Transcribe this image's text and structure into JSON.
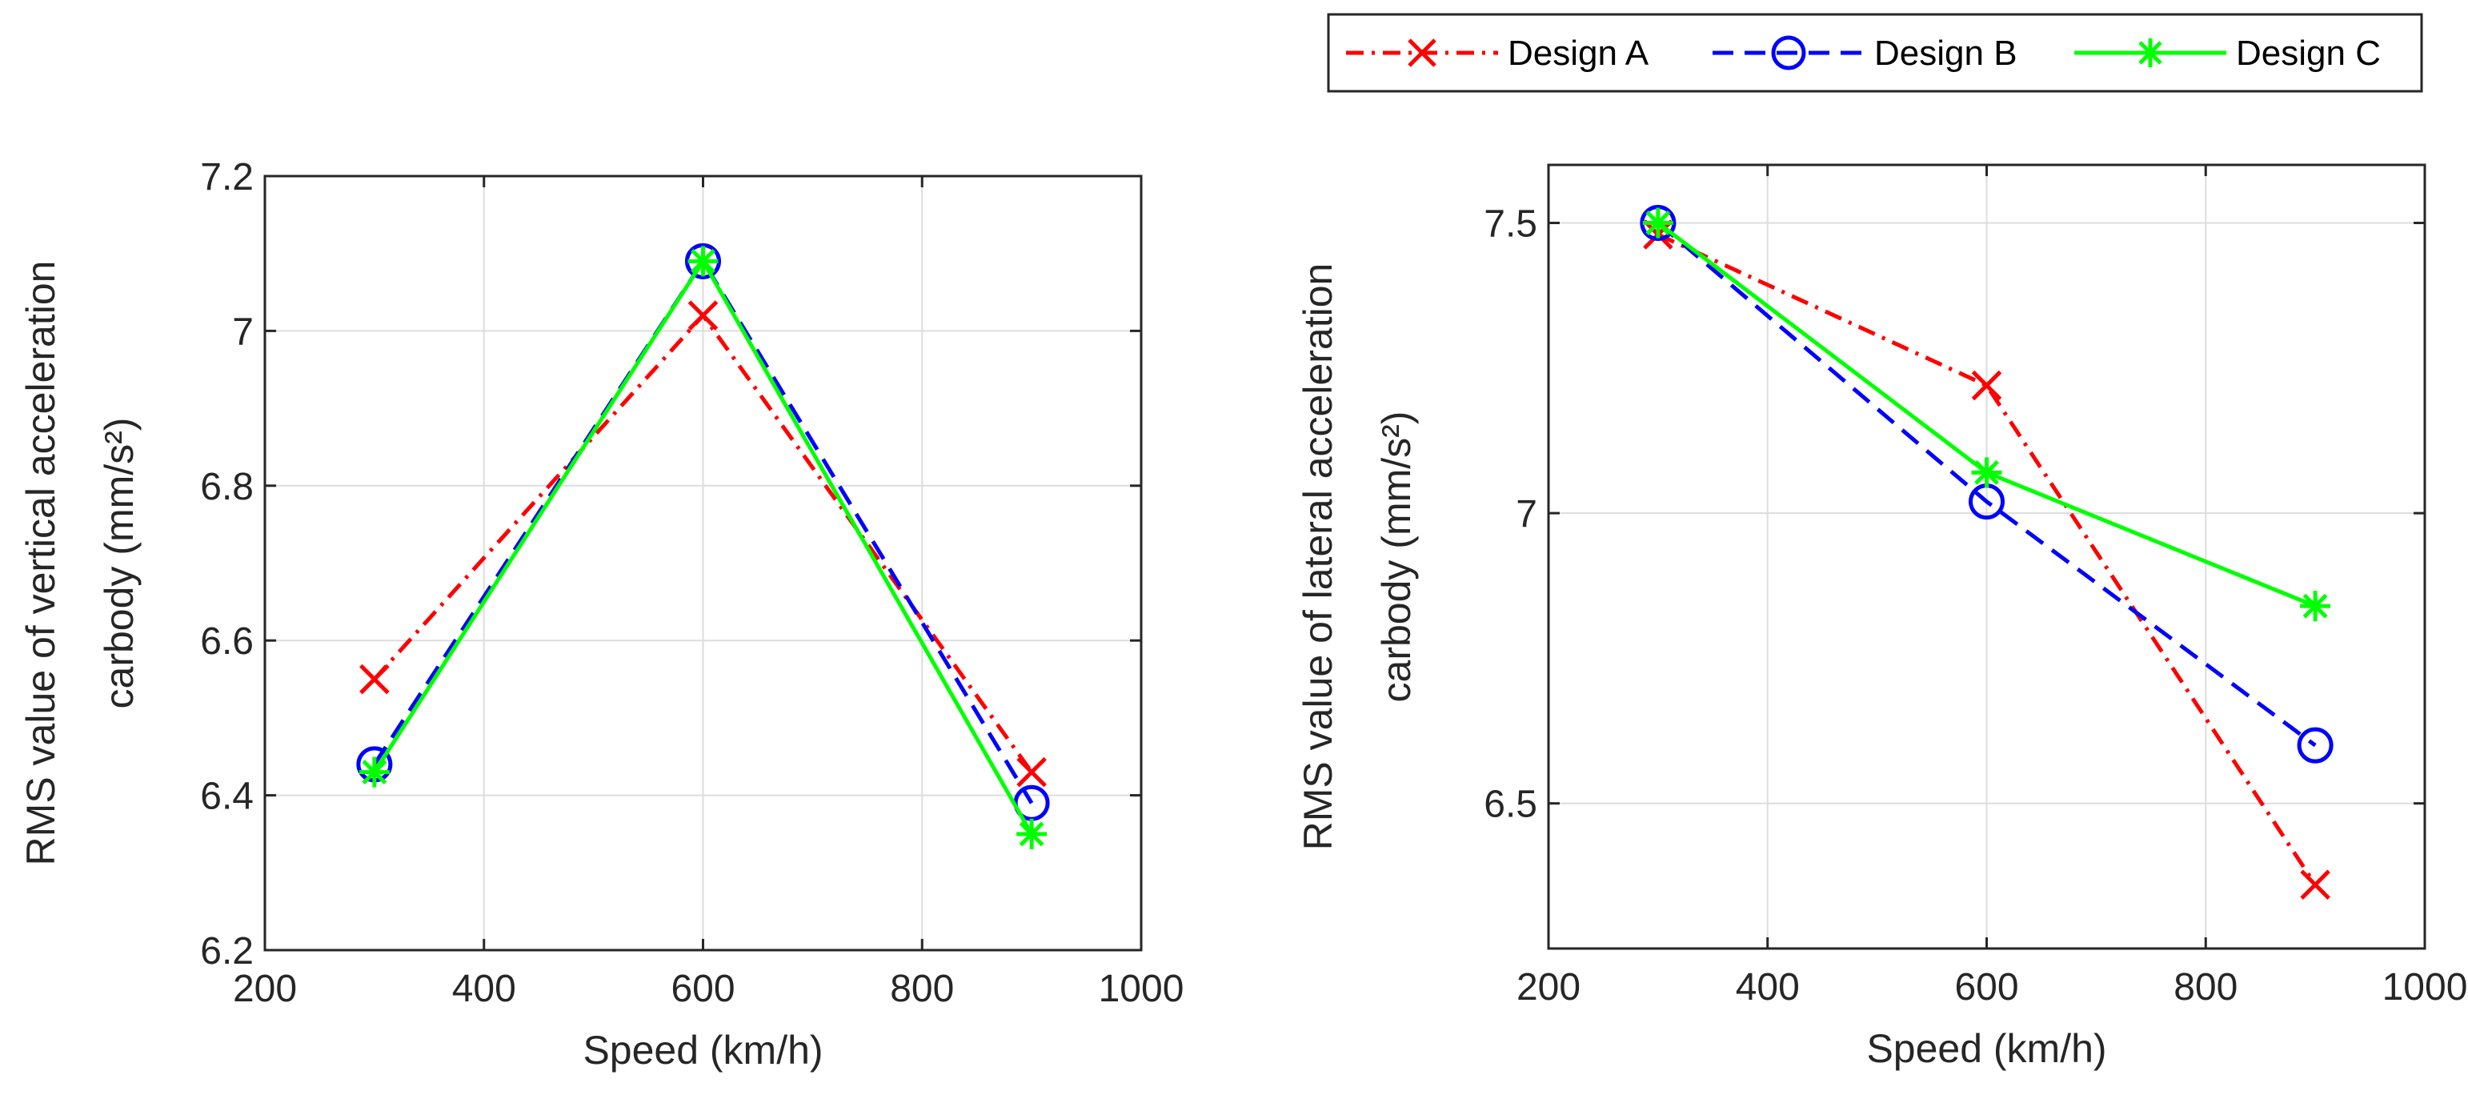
{
  "legend": {
    "entries": [
      {
        "name": "Design A",
        "color": "#ff0000",
        "style": "dashdot",
        "marker": "x"
      },
      {
        "name": "Design B",
        "color": "#0000ff",
        "style": "dashed",
        "marker": "o"
      },
      {
        "name": "Design C",
        "color": "#00ff00",
        "style": "solid",
        "marker": "*"
      }
    ]
  },
  "chart_data": [
    {
      "type": "line",
      "title": "",
      "xlabel": "Speed (km/h)",
      "ylabel_line1": "RMS value of vertical acceleration",
      "ylabel_line2": "carbody (mm/s²)",
      "xlim": [
        200,
        1000
      ],
      "ylim": [
        6.2,
        7.2
      ],
      "xticks": [
        200,
        400,
        600,
        800,
        1000
      ],
      "yticks": [
        6.2,
        6.4,
        6.6,
        6.8,
        7.0,
        7.2
      ],
      "xtick_labels": [
        "200",
        "400",
        "600",
        "800",
        "1000"
      ],
      "ytick_labels": [
        "6.2",
        "6.4",
        "6.6",
        "6.8",
        "7",
        "7.2"
      ],
      "grid": true,
      "x": [
        300,
        600,
        900
      ],
      "series": [
        {
          "name": "Design A",
          "values": [
            6.55,
            7.02,
            6.43
          ]
        },
        {
          "name": "Design B",
          "values": [
            6.44,
            7.09,
            6.39
          ]
        },
        {
          "name": "Design C",
          "values": [
            6.43,
            7.09,
            6.35
          ]
        }
      ]
    },
    {
      "type": "line",
      "title": "",
      "xlabel": "Speed (km/h)",
      "ylabel_line1": "RMS value of lateral acceleration",
      "ylabel_line2": "carbody (mm/s²)",
      "xlim": [
        200,
        1000
      ],
      "ylim": [
        6.25,
        7.6
      ],
      "xticks": [
        200,
        400,
        600,
        800,
        1000
      ],
      "yticks": [
        6.5,
        7.0,
        7.5
      ],
      "xtick_labels": [
        "200",
        "400",
        "600",
        "800",
        "1000"
      ],
      "ytick_labels": [
        "6.5",
        "7",
        "7.5"
      ],
      "grid": true,
      "x": [
        300,
        600,
        900
      ],
      "series": [
        {
          "name": "Design A",
          "values": [
            7.48,
            7.22,
            6.36
          ]
        },
        {
          "name": "Design B",
          "values": [
            7.5,
            7.02,
            6.6
          ]
        },
        {
          "name": "Design C",
          "values": [
            7.5,
            7.07,
            6.84
          ]
        }
      ]
    }
  ]
}
